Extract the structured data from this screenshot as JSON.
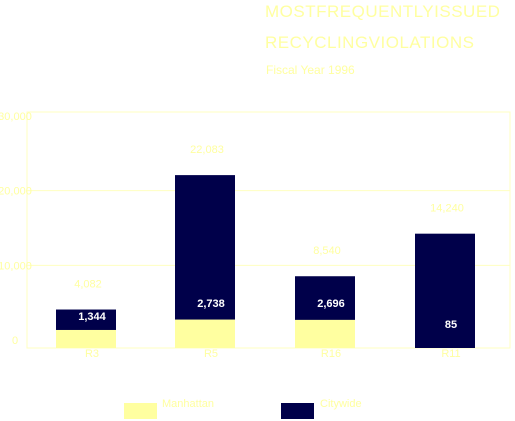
{
  "chart_data": {
    "type": "bar",
    "title_lines": [
      "MOSTFREQUENTLYISSUED",
      "RECYCLINGVIOLATIONS"
    ],
    "subtitle": "Fiscal Year 1996",
    "categories": [
      "R3",
      "R5",
      "R16",
      "R11"
    ],
    "series": [
      {
        "name": "Manhattan",
        "color": "#ffffa0",
        "values": [
          1344,
          2738,
          2696,
          85
        ],
        "labels": [
          "1,344",
          "2,738",
          "2,696",
          "85"
        ]
      },
      {
        "name": "Citywide",
        "color": "#00004a",
        "values": [
          4082,
          22083,
          8540,
          14240
        ],
        "labels": [
          "4,082",
          "22,083",
          "8,540",
          "14,240"
        ]
      }
    ],
    "yticks": [
      0,
      10000,
      20000,
      30000
    ],
    "ytick_labels": [
      "0",
      "10,000",
      "20,000",
      "30,000"
    ],
    "ylim": [
      0,
      30000
    ],
    "grid": true,
    "legend_position": "bottom"
  }
}
